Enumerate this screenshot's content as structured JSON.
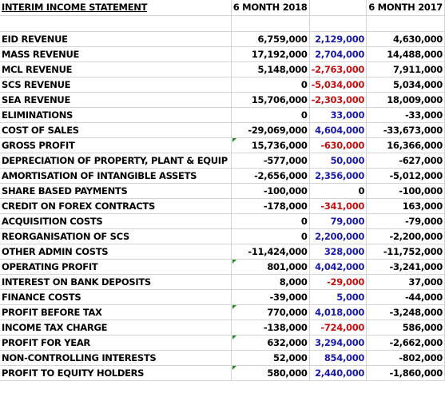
{
  "header": {
    "title": "INTERIM INCOME STATEMENT",
    "col_2018": "6 MONTH 2018",
    "col_2017": "6 MONTH 2017"
  },
  "rows": [
    {
      "label": "EID REVENUE",
      "v2018": "6,759,000",
      "diff": "2,129,000",
      "v2017": "4,630,000",
      "sign": "pos",
      "flag": false
    },
    {
      "label": "MASS REVENUE",
      "v2018": "17,192,000",
      "diff": "2,704,000",
      "v2017": "14,488,000",
      "sign": "pos",
      "flag": false
    },
    {
      "label": "MCL REVENUE",
      "v2018": "5,148,000",
      "diff": "-2,763,000",
      "v2017": "7,911,000",
      "sign": "neg",
      "flag": false
    },
    {
      "label": "SCS REVENUE",
      "v2018": "0",
      "diff": "-5,034,000",
      "v2017": "5,034,000",
      "sign": "neg",
      "flag": false
    },
    {
      "label": "SEA REVENUE",
      "v2018": "15,706,000",
      "diff": "-2,303,000",
      "v2017": "18,009,000",
      "sign": "neg",
      "flag": false
    },
    {
      "label": "ELIMINATIONS",
      "v2018": "0",
      "diff": "33,000",
      "v2017": "-33,000",
      "sign": "pos",
      "flag": false
    },
    {
      "label": "COST OF SALES",
      "v2018": "-29,069,000",
      "diff": "4,604,000",
      "v2017": "-33,673,000",
      "sign": "pos",
      "flag": false
    },
    {
      "label": "GROSS PROFIT",
      "v2018": "15,736,000",
      "diff": "-630,000",
      "v2017": "16,366,000",
      "sign": "neg",
      "flag": true
    },
    {
      "label": "DEPRECIATION OF PROPERTY, PLANT & EQUIP",
      "v2018": "-577,000",
      "diff": "50,000",
      "v2017": "-627,000",
      "sign": "pos",
      "flag": false
    },
    {
      "label": "AMORTISATION OF INTANGIBLE ASSETS",
      "v2018": "-2,656,000",
      "diff": "2,356,000",
      "v2017": "-5,012,000",
      "sign": "pos",
      "flag": false
    },
    {
      "label": "SHARE BASED PAYMENTS",
      "v2018": "-100,000",
      "diff": "0",
      "v2017": "-100,000",
      "sign": "zero",
      "flag": false
    },
    {
      "label": "CREDIT ON FOREX CONTRACTS",
      "v2018": "-178,000",
      "diff": "-341,000",
      "v2017": "163,000",
      "sign": "neg",
      "flag": false
    },
    {
      "label": "ACQUISITION COSTS",
      "v2018": "0",
      "diff": "79,000",
      "v2017": "-79,000",
      "sign": "pos",
      "flag": false
    },
    {
      "label": "REORGANISATION OF SCS",
      "v2018": "0",
      "diff": "2,200,000",
      "v2017": "-2,200,000",
      "sign": "pos",
      "flag": false
    },
    {
      "label": "OTHER ADMIN COSTS",
      "v2018": "-11,424,000",
      "diff": "328,000",
      "v2017": "-11,752,000",
      "sign": "pos",
      "flag": false
    },
    {
      "label": "OPERATING PROFIT",
      "v2018": "801,000",
      "diff": "4,042,000",
      "v2017": "-3,241,000",
      "sign": "pos",
      "flag": true
    },
    {
      "label": "INTEREST ON BANK DEPOSITS",
      "v2018": "8,000",
      "diff": "-29,000",
      "v2017": "37,000",
      "sign": "neg",
      "flag": false
    },
    {
      "label": "FINANCE COSTS",
      "v2018": "-39,000",
      "diff": "5,000",
      "v2017": "-44,000",
      "sign": "pos",
      "flag": false
    },
    {
      "label": "PROFIT BEFORE TAX",
      "v2018": "770,000",
      "diff": "4,018,000",
      "v2017": "-3,248,000",
      "sign": "pos",
      "flag": true
    },
    {
      "label": "INCOME TAX CHARGE",
      "v2018": "-138,000",
      "diff": "-724,000",
      "v2017": "586,000",
      "sign": "neg",
      "flag": false
    },
    {
      "label": "PROFIT FOR YEAR",
      "v2018": "632,000",
      "diff": "3,294,000",
      "v2017": "-2,662,000",
      "sign": "pos",
      "flag": true
    },
    {
      "label": "NON-CONTROLLING INTERESTS",
      "v2018": "52,000",
      "diff": "854,000",
      "v2017": "-802,000",
      "sign": "pos",
      "flag": false
    },
    {
      "label": "PROFIT TO EQUITY HOLDERS",
      "v2018": "580,000",
      "diff": "2,440,000",
      "v2017": "-1,860,000",
      "sign": "pos",
      "flag": true
    }
  ],
  "colors": {
    "positive_diff": "#1a1aa6",
    "negative_diff": "#c41010",
    "error_flag": "#1e8c1e",
    "gridline": "#d4d4d4"
  }
}
